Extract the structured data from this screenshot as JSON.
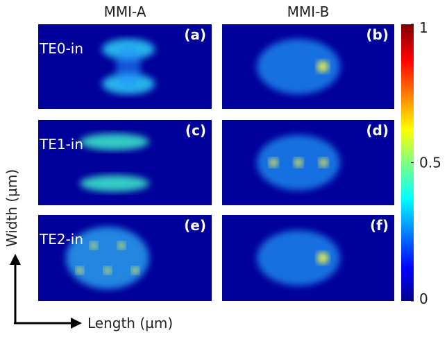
{
  "columns": [
    "MMI-A",
    "MMI-B"
  ],
  "rows": [
    {
      "label": "TE0-in",
      "panels": [
        "(a)",
        "(b)"
      ]
    },
    {
      "label": "TE1-in",
      "panels": [
        "(c)",
        "(d)"
      ]
    },
    {
      "label": "TE2-in",
      "panels": [
        "(e)",
        "(f)"
      ]
    }
  ],
  "colorbar": {
    "range": [
      0,
      1
    ],
    "ticks": [
      0,
      0.5,
      1
    ]
  },
  "axes": {
    "y_label": "Width (µm)",
    "x_label": "Length (µm)"
  }
}
